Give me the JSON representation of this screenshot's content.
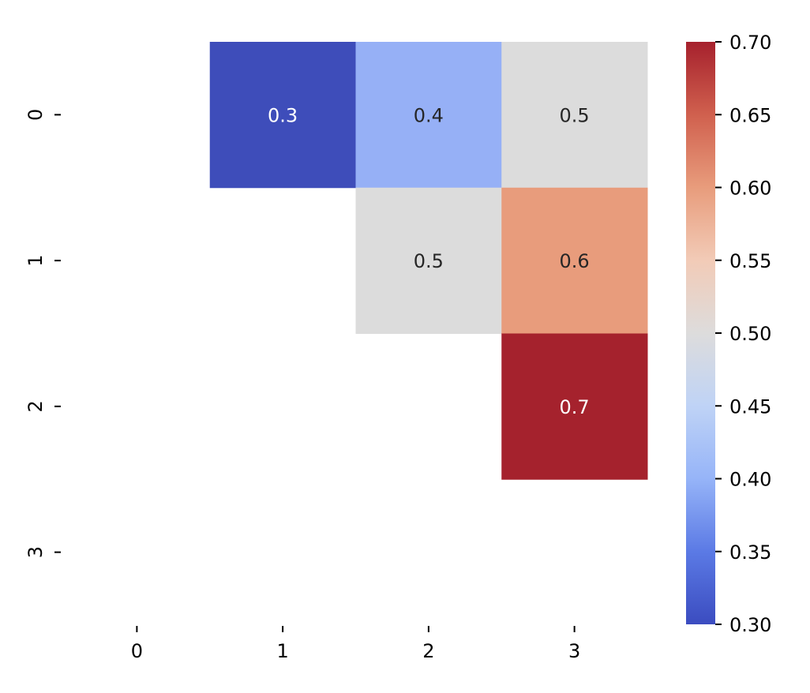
{
  "chart_data": {
    "type": "heatmap",
    "title": "",
    "xlabel": "",
    "ylabel": "",
    "x_categories": [
      "0",
      "1",
      "2",
      "3"
    ],
    "y_categories": [
      "0",
      "1",
      "2",
      "3"
    ],
    "cells": [
      {
        "row": 0,
        "col": 1,
        "value": 0.3,
        "label": "0.3"
      },
      {
        "row": 0,
        "col": 2,
        "value": 0.4,
        "label": "0.4"
      },
      {
        "row": 0,
        "col": 3,
        "value": 0.5,
        "label": "0.5"
      },
      {
        "row": 1,
        "col": 2,
        "value": 0.5,
        "label": "0.5"
      },
      {
        "row": 1,
        "col": 3,
        "value": 0.6,
        "label": "0.6"
      },
      {
        "row": 2,
        "col": 3,
        "value": 0.7,
        "label": "0.7"
      }
    ],
    "colormap": "coolwarm",
    "vmin": 0.3,
    "vmax": 0.7,
    "colorbar_ticks": [
      "0.30",
      "0.35",
      "0.40",
      "0.45",
      "0.50",
      "0.55",
      "0.60",
      "0.65",
      "0.70"
    ],
    "colorbar_stops": [
      {
        "value": 0.3,
        "color": "#3b4cc0"
      },
      {
        "value": 0.35,
        "color": "#5b7ae5"
      },
      {
        "value": 0.4,
        "color": "#96b4f8"
      },
      {
        "value": 0.45,
        "color": "#bfd3f6"
      },
      {
        "value": 0.5,
        "color": "#dddcdc"
      },
      {
        "value": 0.55,
        "color": "#f2cbb7"
      },
      {
        "value": 0.6,
        "color": "#e89c7c"
      },
      {
        "value": 0.65,
        "color": "#d0604e"
      },
      {
        "value": 0.7,
        "color": "#a6212d"
      }
    ],
    "cell_colors": {
      "0.3": "#3e4dba",
      "0.4": "#96b0f6",
      "0.5": "#dcdcdc",
      "0.6": "#e89c7c",
      "0.7": "#a5222d"
    },
    "label_light_color": "#ffffff",
    "label_dark_color": "#262626"
  }
}
